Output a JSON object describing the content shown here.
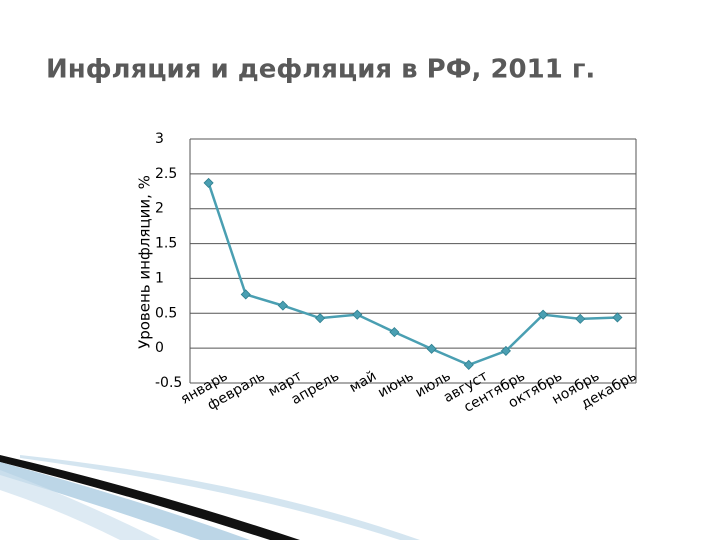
{
  "chart_data": {
    "type": "line",
    "title": "Инфляция и дефляция в РФ, 2011 г.",
    "y_label": "Уровень инфляции, %",
    "categories": [
      "январь",
      "февраль",
      "март",
      "апрель",
      "май",
      "июнь",
      "июль",
      "август",
      "сентябрь",
      "октябрь",
      "ноябрь",
      "декабрь"
    ],
    "series": [
      {
        "name": "Уровень инфляции",
        "color": "#4a9fb2",
        "values": [
          2.37,
          0.77,
          0.61,
          0.43,
          0.48,
          0.23,
          -0.01,
          -0.24,
          -0.04,
          0.48,
          0.42,
          0.44
        ]
      }
    ],
    "ylim": [
      -0.5,
      3
    ],
    "yticks": [
      -0.5,
      0,
      0.5,
      1,
      1.5,
      2,
      2.5,
      3
    ],
    "grid": true
  }
}
